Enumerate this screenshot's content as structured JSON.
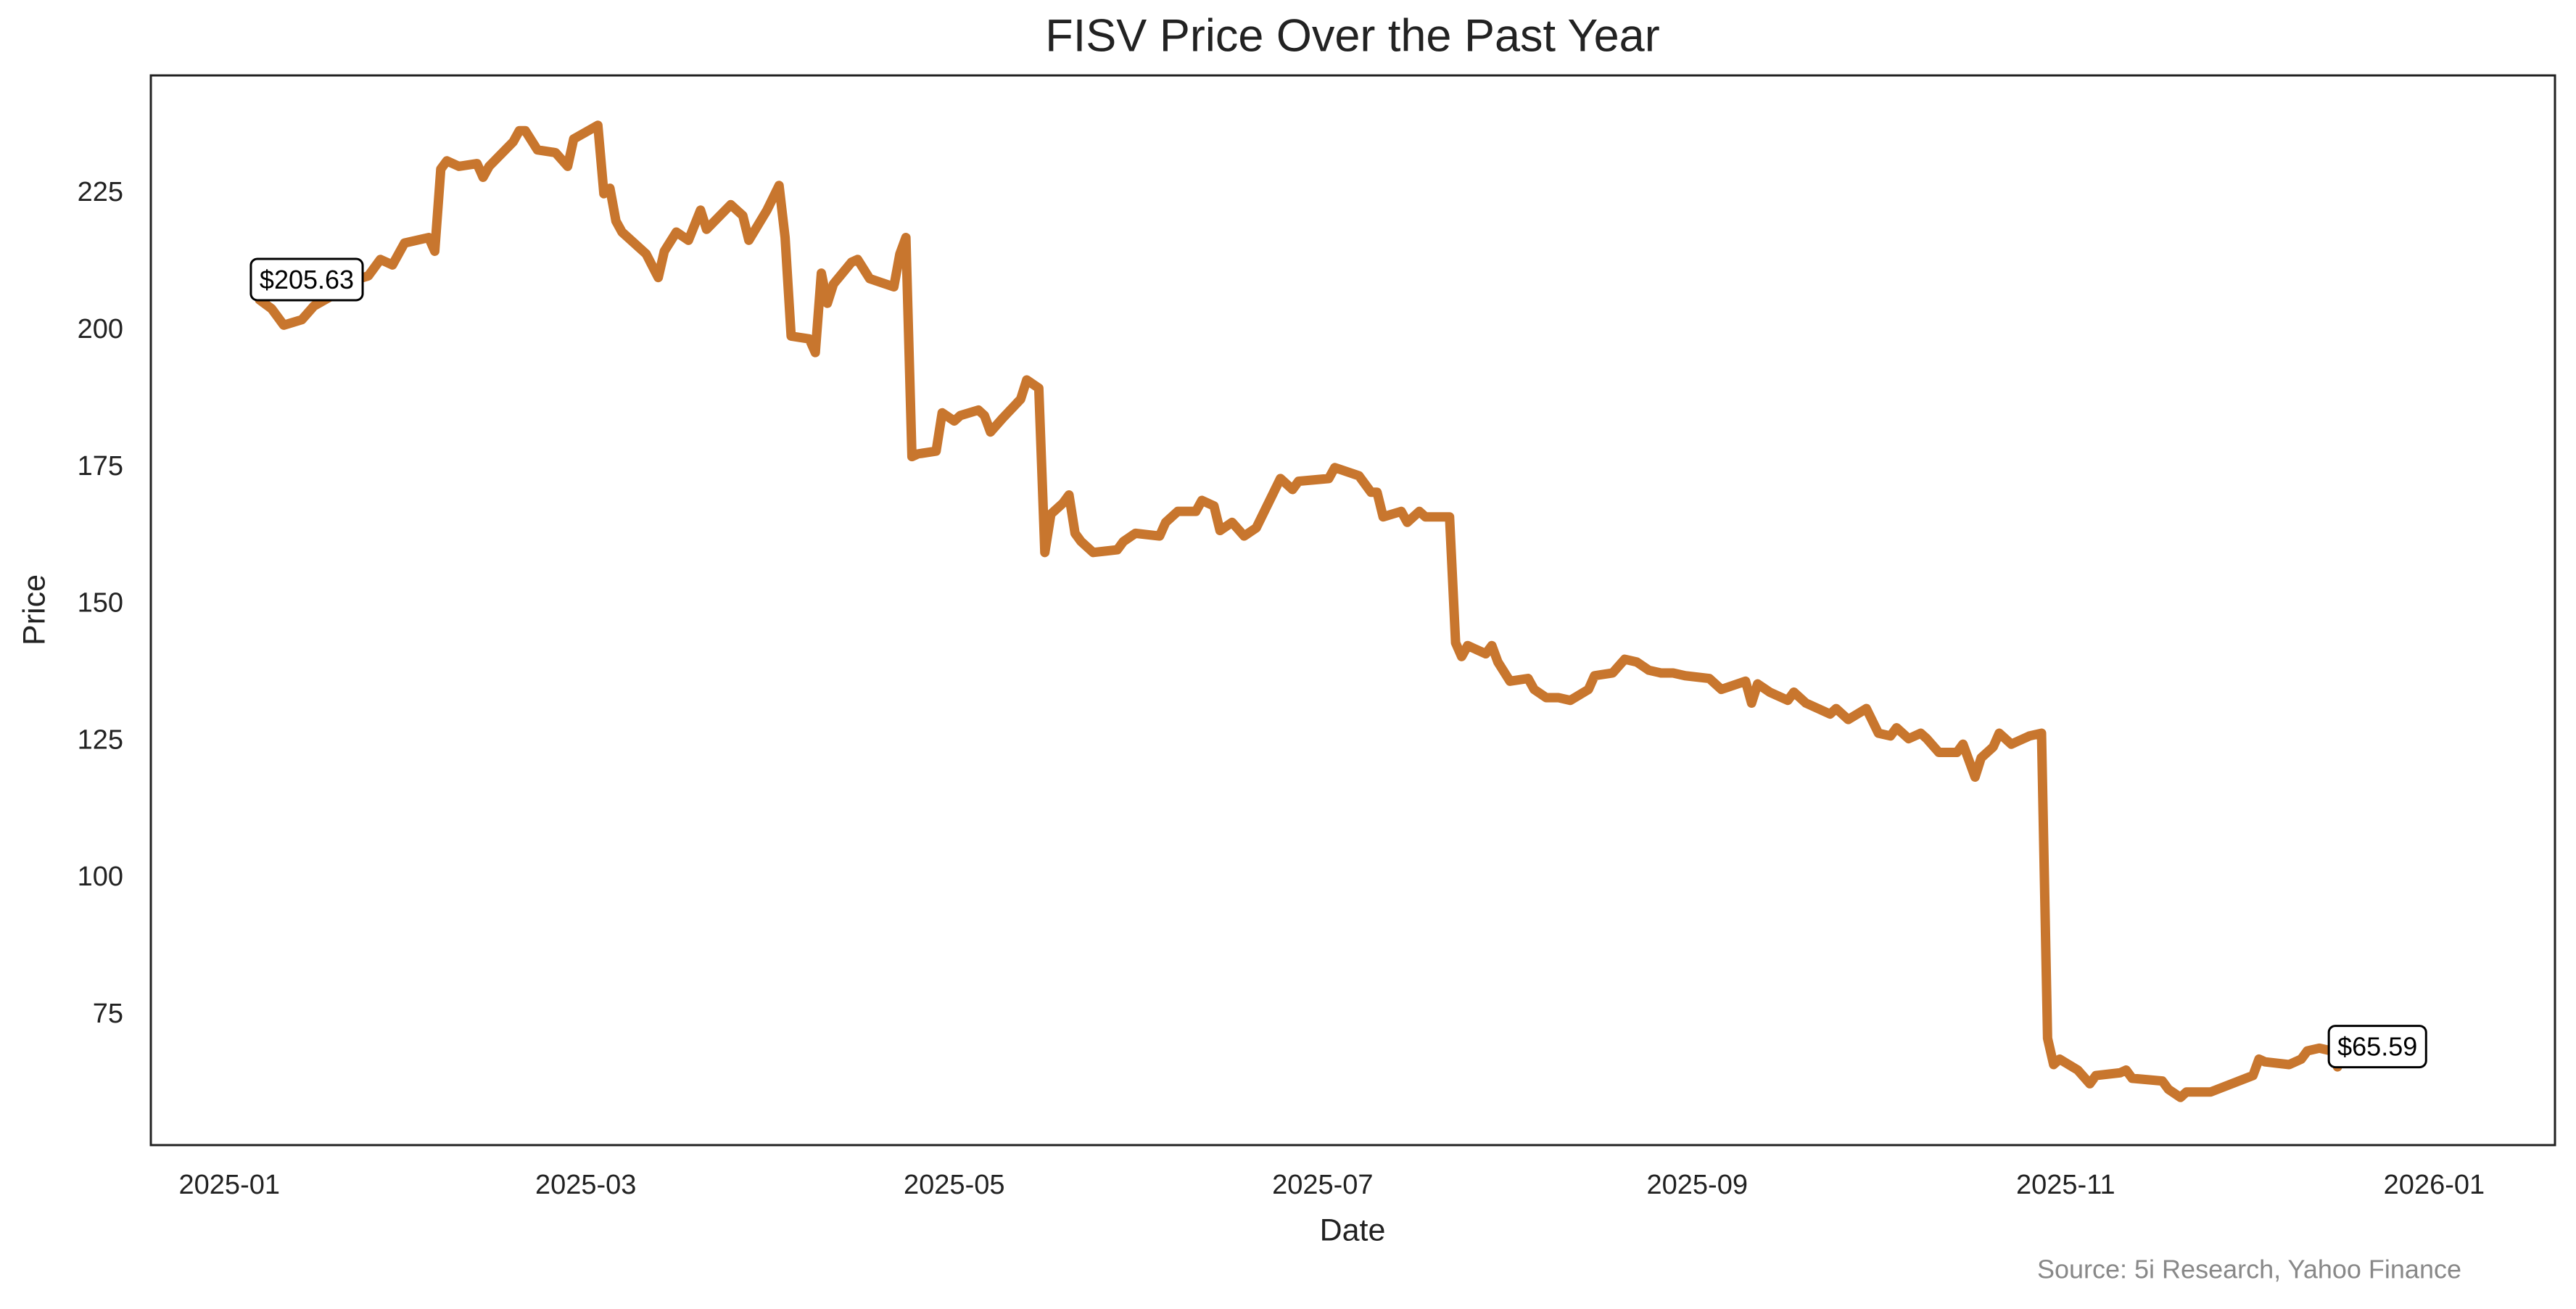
{
  "chart_data": {
    "type": "line",
    "title": "FISV Price Over the Past Year",
    "xlabel": "Date",
    "ylabel": "Price",
    "source": "Source: 5i Research, Yahoo Finance",
    "xlim": [
      "2024-12-19",
      "2026-01-21"
    ],
    "xticks": [
      {
        "value": "2025-01-01",
        "label": "2025-01"
      },
      {
        "value": "2025-03-01",
        "label": "2025-03"
      },
      {
        "value": "2025-05-01",
        "label": "2025-05"
      },
      {
        "value": "2025-07-01",
        "label": "2025-07"
      },
      {
        "value": "2025-09-01",
        "label": "2025-09"
      },
      {
        "value": "2025-11-01",
        "label": "2025-11"
      },
      {
        "value": "2026-01-01",
        "label": "2026-01"
      }
    ],
    "ylim": [
      51.3,
      246.6
    ],
    "yticks": [
      75,
      100,
      125,
      150,
      175,
      200,
      225
    ],
    "grid": false,
    "x": [
      "2025-01-06",
      "2025-01-08",
      "2025-01-10",
      "2025-01-13",
      "2025-01-15",
      "2025-01-19",
      "2025-01-21",
      "2025-01-24",
      "2025-01-26",
      "2025-01-28",
      "2025-01-30",
      "2025-02-03",
      "2025-02-04",
      "2025-02-05",
      "2025-02-06",
      "2025-02-08",
      "2025-02-11",
      "2025-02-12",
      "2025-02-13",
      "2025-02-17",
      "2025-02-18",
      "2025-02-19",
      "2025-02-21",
      "2025-02-24",
      "2025-02-26",
      "2025-02-27",
      "2025-03-03",
      "2025-03-04",
      "2025-03-05",
      "2025-03-06",
      "2025-03-07",
      "2025-03-11",
      "2025-03-13",
      "2025-03-14",
      "2025-03-16",
      "2025-03-18",
      "2025-03-20",
      "2025-03-21",
      "2025-03-25",
      "2025-03-27",
      "2025-03-28",
      "2025-03-31",
      "2025-04-02",
      "2025-04-03",
      "2025-04-04",
      "2025-04-07",
      "2025-04-08",
      "2025-04-09",
      "2025-04-10",
      "2025-04-11",
      "2025-04-14",
      "2025-04-15",
      "2025-04-17",
      "2025-04-21",
      "2025-04-22",
      "2025-04-23",
      "2025-04-24",
      "2025-04-25",
      "2025-04-28",
      "2025-04-29",
      "2025-05-01",
      "2025-05-02",
      "2025-05-05",
      "2025-05-06",
      "2025-05-07",
      "2025-05-09",
      "2025-05-12",
      "2025-05-13",
      "2025-05-15",
      "2025-05-16",
      "2025-05-17",
      "2025-05-19",
      "2025-05-20",
      "2025-05-21",
      "2025-05-22",
      "2025-05-24",
      "2025-05-28",
      "2025-05-29",
      "2025-05-31",
      "2025-06-04",
      "2025-06-05",
      "2025-06-07",
      "2025-06-10",
      "2025-06-11",
      "2025-06-13",
      "2025-06-14",
      "2025-06-16",
      "2025-06-18",
      "2025-06-20",
      "2025-06-24",
      "2025-06-26",
      "2025-06-27",
      "2025-07-02",
      "2025-07-03",
      "2025-07-07",
      "2025-07-09",
      "2025-07-10",
      "2025-07-11",
      "2025-07-14",
      "2025-07-15",
      "2025-07-17",
      "2025-07-18",
      "2025-07-22",
      "2025-07-23",
      "2025-07-24",
      "2025-07-25",
      "2025-07-28",
      "2025-07-29",
      "2025-07-30",
      "2025-08-01",
      "2025-08-04",
      "2025-08-05",
      "2025-08-07",
      "2025-08-09",
      "2025-08-11",
      "2025-08-14",
      "2025-08-15",
      "2025-08-18",
      "2025-08-20",
      "2025-08-22",
      "2025-08-24",
      "2025-08-26",
      "2025-08-28",
      "2025-08-30",
      "2025-09-03",
      "2025-09-05",
      "2025-09-09",
      "2025-09-10",
      "2025-09-11",
      "2025-09-13",
      "2025-09-16",
      "2025-09-17",
      "2025-09-19",
      "2025-09-23",
      "2025-09-24",
      "2025-09-26",
      "2025-09-29",
      "2025-10-01",
      "2025-10-03",
      "2025-10-04",
      "2025-10-06",
      "2025-10-08",
      "2025-10-09",
      "2025-10-11",
      "2025-10-14",
      "2025-10-15",
      "2025-10-17",
      "2025-10-18",
      "2025-10-20",
      "2025-10-21",
      "2025-10-23",
      "2025-10-24",
      "2025-10-26",
      "2025-10-28",
      "2025-10-29",
      "2025-10-30",
      "2025-10-31",
      "2025-11-03",
      "2025-11-05",
      "2025-11-06",
      "2025-11-10",
      "2025-11-11",
      "2025-11-12",
      "2025-11-17",
      "2025-11-18",
      "2025-11-20",
      "2025-11-21",
      "2025-11-25",
      "2025-12-02",
      "2025-12-03",
      "2025-12-04",
      "2025-12-08",
      "2025-12-10",
      "2025-12-11",
      "2025-12-13",
      "2025-12-15",
      "2025-12-16"
    ],
    "series": [
      {
        "name": "FISV",
        "color": "#c8762e",
        "values": [
          205.63,
          204,
          201,
          202,
          204.5,
          207,
          209,
          210,
          213,
          212,
          216,
          217,
          214.5,
          229.5,
          231,
          230,
          230.5,
          228,
          230,
          234.5,
          236.5,
          236.5,
          233,
          232.5,
          230,
          235,
          237.5,
          225,
          226,
          220,
          218,
          214,
          209.7,
          214.5,
          218,
          216.5,
          222,
          218.5,
          223,
          221,
          216.5,
          222,
          226.5,
          217,
          199,
          198.5,
          196,
          210.5,
          205,
          208.5,
          212.5,
          213,
          209.5,
          208,
          214,
          217,
          177,
          177.5,
          178,
          185,
          183.5,
          184.5,
          185.5,
          184.5,
          181.5,
          184,
          187.5,
          191,
          189.5,
          159.5,
          166.5,
          168.5,
          170,
          163,
          161.5,
          159.5,
          160,
          161.5,
          163,
          162.5,
          165,
          167,
          167,
          169,
          168,
          163.5,
          165,
          162.5,
          164,
          173,
          171,
          172.5,
          173,
          175,
          173.5,
          170.5,
          170.5,
          166,
          167,
          165,
          167,
          166,
          166,
          143,
          140.5,
          142.5,
          141,
          142.5,
          139.5,
          136,
          136.5,
          134.5,
          133,
          133,
          132.5,
          134.5,
          137,
          137.5,
          140,
          139.5,
          138,
          137.5,
          137.5,
          137,
          136.5,
          134.5,
          136,
          132,
          135.5,
          134,
          132.5,
          134,
          132,
          130,
          131,
          129,
          131,
          126.5,
          126,
          127.5,
          125.5,
          126.5,
          125.5,
          123,
          123,
          124.5,
          118.5,
          122,
          124,
          126.5,
          124.5,
          125,
          126,
          126.5,
          70.8,
          66,
          67,
          65,
          62.5,
          64,
          64.5,
          65,
          63.5,
          63,
          61.5,
          60,
          61,
          61,
          64,
          67,
          66.5,
          66,
          67,
          68.5,
          69,
          68.5,
          65.59
        ],
        "value_labels": [
          "$205.63",
          null,
          null,
          null,
          null,
          null,
          null,
          null,
          null,
          null,
          null,
          null,
          null,
          null,
          null,
          null,
          null,
          null,
          null,
          null,
          null,
          null,
          null,
          null,
          null,
          null,
          null,
          null,
          null,
          null,
          null,
          null,
          null,
          null,
          null,
          null,
          null,
          null,
          null,
          null,
          null,
          null,
          null,
          null,
          null,
          null,
          null,
          null,
          null,
          null,
          null,
          null,
          null,
          null,
          null,
          null,
          null,
          null,
          null,
          null,
          null,
          null,
          null,
          null,
          null,
          null,
          null,
          null,
          null,
          null,
          null,
          null,
          null,
          null,
          null,
          null,
          null,
          null,
          null,
          null,
          null,
          null,
          null,
          null,
          null,
          null,
          null,
          null,
          null,
          null,
          null,
          null,
          null,
          null,
          null,
          null,
          null,
          null,
          null,
          null,
          null,
          null,
          null,
          null,
          null,
          null,
          null,
          null,
          null,
          null,
          null,
          null,
          null,
          null,
          null,
          null,
          null,
          null,
          null,
          null,
          null,
          null,
          null,
          null,
          null,
          null,
          null,
          null,
          null,
          null,
          null,
          null,
          null,
          null,
          null,
          null,
          null,
          null,
          null,
          null,
          null,
          null,
          null,
          null,
          null,
          null,
          null,
          null,
          null,
          null,
          null,
          null,
          null,
          null,
          null,
          null,
          null,
          null,
          null,
          null,
          null,
          null,
          null,
          null,
          null,
          null,
          null,
          null,
          null,
          null,
          null,
          null,
          null,
          null,
          null,
          null,
          "$65.59"
        ]
      }
    ]
  }
}
